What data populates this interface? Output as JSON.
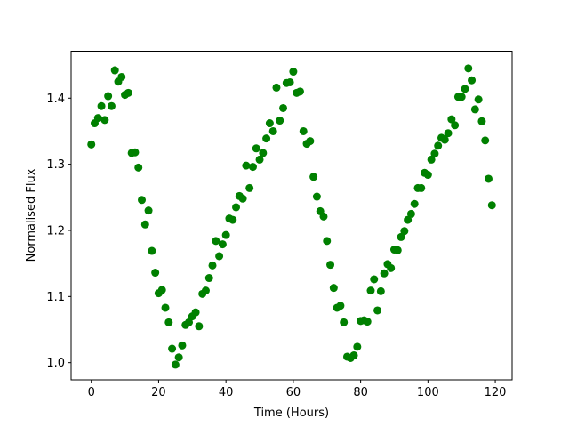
{
  "chart_data": {
    "type": "scatter",
    "title": "",
    "xlabel": "Time (Hours)",
    "ylabel": "Normalised Flux",
    "xlim": [
      -6,
      125
    ],
    "ylim": [
      0.974,
      1.471
    ],
    "xticks": [
      0,
      20,
      40,
      60,
      80,
      100,
      120
    ],
    "yticks": [
      1.0,
      1.1,
      1.2,
      1.3,
      1.4
    ],
    "xtick_labels": [
      "0",
      "20",
      "40",
      "60",
      "80",
      "100",
      "120"
    ],
    "ytick_labels": [
      "1.0",
      "1.1",
      "1.2",
      "1.3",
      "1.4"
    ],
    "grid": false,
    "marker_color": "#008000",
    "series": [
      {
        "x": [
          0,
          1,
          2,
          3,
          4,
          5,
          6,
          7,
          8,
          9,
          10,
          11,
          12,
          13,
          14,
          15,
          16,
          17,
          18,
          19,
          20,
          21,
          22,
          23,
          24,
          25,
          26,
          27,
          28,
          29,
          30,
          31,
          32,
          33,
          34,
          35,
          36,
          37,
          38,
          39,
          40,
          41,
          42,
          43,
          44,
          45,
          46,
          47,
          48,
          49,
          50,
          51,
          52,
          53,
          54,
          55,
          56,
          57,
          58,
          59,
          60,
          61,
          62,
          63,
          64,
          65,
          66,
          67,
          68,
          69,
          70,
          71,
          72,
          73,
          74,
          75,
          76,
          77,
          78,
          79,
          80,
          81,
          82,
          83,
          84,
          85,
          86,
          87,
          88,
          89,
          90,
          91,
          92,
          93,
          94,
          95,
          96,
          97,
          98,
          99,
          100,
          101,
          102,
          103,
          104,
          105,
          106,
          107,
          108,
          109,
          110,
          111,
          112,
          113,
          114,
          115,
          116,
          117,
          118,
          119
        ],
        "y": [
          1.33,
          1.362,
          1.37,
          1.388,
          1.367,
          1.403,
          1.388,
          1.442,
          1.425,
          1.432,
          1.405,
          1.408,
          1.317,
          1.318,
          1.295,
          1.246,
          1.209,
          1.23,
          1.169,
          1.136,
          1.105,
          1.11,
          1.083,
          1.061,
          1.021,
          0.997,
          1.008,
          1.026,
          1.057,
          1.061,
          1.07,
          1.076,
          1.055,
          1.104,
          1.109,
          1.128,
          1.147,
          1.184,
          1.161,
          1.179,
          1.193,
          1.218,
          1.216,
          1.235,
          1.252,
          1.248,
          1.298,
          1.264,
          1.296,
          1.324,
          1.307,
          1.317,
          1.339,
          1.362,
          1.35,
          1.416,
          1.366,
          1.385,
          1.423,
          1.424,
          1.44,
          1.408,
          1.41,
          1.35,
          1.331,
          1.335,
          1.281,
          1.251,
          1.229,
          1.221,
          1.184,
          1.148,
          1.113,
          1.083,
          1.086,
          1.061,
          1.009,
          1.007,
          1.011,
          1.024,
          1.063,
          1.064,
          1.062,
          1.109,
          1.126,
          1.079,
          1.108,
          1.135,
          1.149,
          1.143,
          1.171,
          1.17,
          1.19,
          1.199,
          1.216,
          1.225,
          1.24,
          1.264,
          1.264,
          1.287,
          1.284,
          1.307,
          1.316,
          1.328,
          1.34,
          1.337,
          1.347,
          1.368,
          1.359,
          1.402,
          1.402,
          1.414,
          1.445,
          1.427,
          1.383,
          1.398,
          1.365,
          1.336,
          1.278,
          1.238
        ]
      }
    ]
  }
}
